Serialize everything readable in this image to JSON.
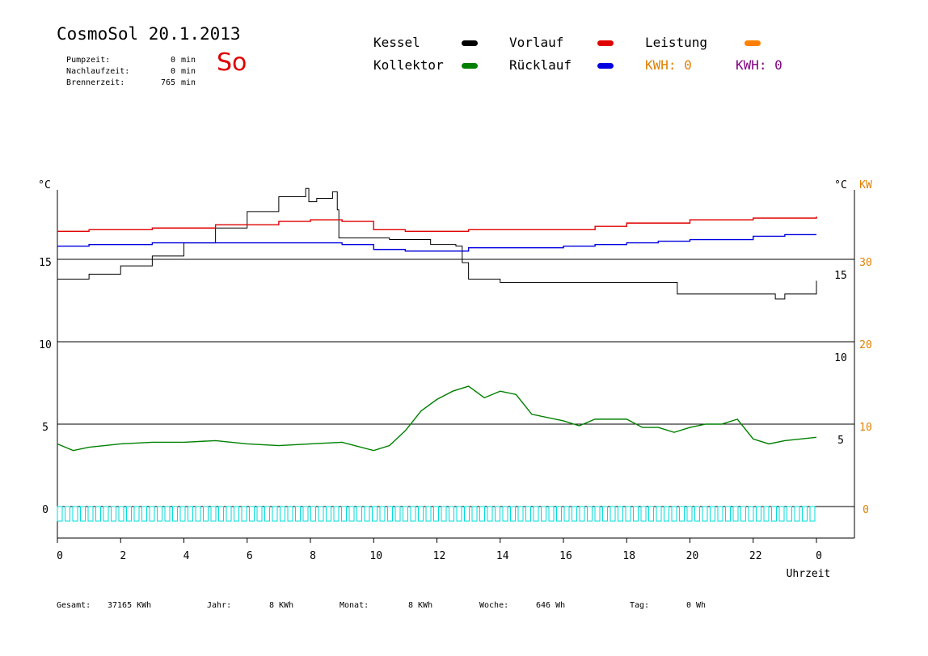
{
  "header": {
    "title": "CosmoSol 20.1.2013",
    "day": "So",
    "stats": [
      {
        "label": "Pumpzeit:",
        "value": "0",
        "unit": "min"
      },
      {
        "label": "Nachlaufzeit:",
        "value": "0",
        "unit": "min"
      },
      {
        "label": "Brennerzeit:",
        "value": "765",
        "unit": "min"
      }
    ]
  },
  "legend": [
    {
      "label": "Kessel",
      "color": "#000000"
    },
    {
      "label": "Vorlauf",
      "color": "#e00000"
    },
    {
      "label": "Leistung",
      "color": "#ff8000"
    },
    {
      "label": "Kollektor",
      "color": "#008000"
    },
    {
      "label": "Rücklauf",
      "color": "#0000e0"
    }
  ],
  "kwh": [
    {
      "label": "KWH: 0",
      "color": "#e08000"
    },
    {
      "label": "KWH: 0",
      "color": "#800080"
    }
  ],
  "footer": [
    {
      "label": "Gesamt:",
      "value": "37165 KWh"
    },
    {
      "label": "Jahr:",
      "value": "8 KWh"
    },
    {
      "label": "Monat:",
      "value": "8 KWh"
    },
    {
      "label": "Woche:",
      "value": "646 Wh"
    },
    {
      "label": "Tag:",
      "value": "0 Wh"
    }
  ],
  "chart_data": {
    "type": "line",
    "xlabel": "Uhrzeit",
    "xlim": [
      0,
      24
    ],
    "x_ticks": [
      "0",
      "2",
      "4",
      "6",
      "8",
      "10",
      "12",
      "14",
      "16",
      "18",
      "20",
      "22",
      "0"
    ],
    "y_left_unit": "°C",
    "y_left_ticks": [
      "15",
      "10",
      "5",
      "0"
    ],
    "y_right_unit": "°C",
    "y_right_ticks": [
      "15",
      "10",
      "5"
    ],
    "y_kw_unit": "KW",
    "y_kw_ticks": [
      "30",
      "20",
      "10",
      "0"
    ],
    "ylim": [
      -1.5,
      20
    ],
    "grid": true,
    "series": [
      {
        "name": "Kessel",
        "color": "#000000",
        "step": true,
        "points": [
          [
            0,
            13.8
          ],
          [
            1,
            14.1
          ],
          [
            2,
            14.6
          ],
          [
            3,
            15.2
          ],
          [
            4,
            16.0
          ],
          [
            5,
            16.9
          ],
          [
            6,
            17.9
          ],
          [
            7,
            18.8
          ],
          [
            7.85,
            19.3
          ],
          [
            7.95,
            18.5
          ],
          [
            8.2,
            18.7
          ],
          [
            8.7,
            19.1
          ],
          [
            8.85,
            18.0
          ],
          [
            8.9,
            16.3
          ],
          [
            9.5,
            16.3
          ],
          [
            10.5,
            16.2
          ],
          [
            11.5,
            16.2
          ],
          [
            11.8,
            15.9
          ],
          [
            12.6,
            15.8
          ],
          [
            12.8,
            14.8
          ],
          [
            13.0,
            13.8
          ],
          [
            14,
            13.6
          ],
          [
            16,
            13.6
          ],
          [
            18,
            13.6
          ],
          [
            19.5,
            13.6
          ],
          [
            19.6,
            12.9
          ],
          [
            21,
            12.9
          ],
          [
            22.5,
            12.9
          ],
          [
            22.7,
            12.6
          ],
          [
            23,
            12.9
          ],
          [
            24,
            13.7
          ]
        ]
      },
      {
        "name": "Vorlauf",
        "color": "#e00000",
        "step": true,
        "points": [
          [
            0,
            16.7
          ],
          [
            1,
            16.8
          ],
          [
            3,
            16.9
          ],
          [
            5,
            17.1
          ],
          [
            7,
            17.3
          ],
          [
            8,
            17.4
          ],
          [
            9,
            17.3
          ],
          [
            10,
            16.8
          ],
          [
            11,
            16.7
          ],
          [
            12,
            16.7
          ],
          [
            13,
            16.8
          ],
          [
            14,
            16.8
          ],
          [
            16,
            16.8
          ],
          [
            17,
            17.0
          ],
          [
            18,
            17.2
          ],
          [
            20,
            17.4
          ],
          [
            22,
            17.5
          ],
          [
            23,
            17.5
          ],
          [
            24,
            17.6
          ]
        ]
      },
      {
        "name": "Rücklauf",
        "color": "#0000e0",
        "step": true,
        "points": [
          [
            0,
            15.8
          ],
          [
            1,
            15.9
          ],
          [
            2,
            15.9
          ],
          [
            3,
            16.0
          ],
          [
            5,
            16.0
          ],
          [
            8,
            16.0
          ],
          [
            9,
            15.9
          ],
          [
            10,
            15.6
          ],
          [
            11,
            15.5
          ],
          [
            12,
            15.5
          ],
          [
            13,
            15.7
          ],
          [
            14,
            15.7
          ],
          [
            16,
            15.8
          ],
          [
            17,
            15.9
          ],
          [
            18,
            16.0
          ],
          [
            19,
            16.1
          ],
          [
            20,
            16.2
          ],
          [
            21,
            16.2
          ],
          [
            22,
            16.4
          ],
          [
            23,
            16.5
          ],
          [
            24,
            16.5
          ]
        ]
      },
      {
        "name": "Kollektor",
        "color": "#008000",
        "step": false,
        "points": [
          [
            0,
            3.8
          ],
          [
            0.5,
            3.4
          ],
          [
            1,
            3.6
          ],
          [
            2,
            3.8
          ],
          [
            3,
            3.9
          ],
          [
            4,
            3.9
          ],
          [
            5,
            4.0
          ],
          [
            6,
            3.8
          ],
          [
            7,
            3.7
          ],
          [
            8,
            3.8
          ],
          [
            9,
            3.9
          ],
          [
            10,
            3.4
          ],
          [
            10.5,
            3.7
          ],
          [
            11,
            4.6
          ],
          [
            11.5,
            5.8
          ],
          [
            12,
            6.5
          ],
          [
            12.5,
            7.0
          ],
          [
            13,
            7.3
          ],
          [
            13.5,
            6.6
          ],
          [
            14,
            7.0
          ],
          [
            14.5,
            6.8
          ],
          [
            15,
            5.6
          ],
          [
            16,
            5.2
          ],
          [
            16.5,
            4.9
          ],
          [
            17,
            5.3
          ],
          [
            18,
            5.3
          ],
          [
            18.5,
            4.8
          ],
          [
            19,
            4.8
          ],
          [
            19.5,
            4.5
          ],
          [
            20,
            4.8
          ],
          [
            20.5,
            5.0
          ],
          [
            21,
            5.0
          ],
          [
            21.5,
            5.3
          ],
          [
            22,
            4.1
          ],
          [
            22.5,
            3.8
          ],
          [
            23,
            4.0
          ],
          [
            24,
            4.2
          ]
        ]
      },
      {
        "name": "Leistung",
        "color": "#00dddd",
        "step": false,
        "points": [
          [
            0,
            0
          ],
          [
            24,
            0
          ]
        ]
      }
    ]
  }
}
